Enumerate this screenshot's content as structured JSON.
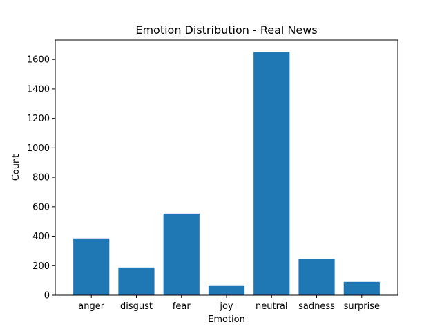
{
  "chart_data": {
    "type": "bar",
    "title": "Emotion Distribution - Real News",
    "xlabel": "Emotion",
    "ylabel": "Count",
    "categories": [
      "anger",
      "disgust",
      "fear",
      "joy",
      "neutral",
      "sadness",
      "surprise"
    ],
    "values": [
      385,
      188,
      553,
      62,
      1650,
      245,
      90
    ],
    "ylim": [
      0,
      1732
    ],
    "yticks": [
      0,
      200,
      400,
      600,
      800,
      1000,
      1200,
      1400,
      1600
    ],
    "grid": false,
    "bar_color": "#1f77b4"
  }
}
